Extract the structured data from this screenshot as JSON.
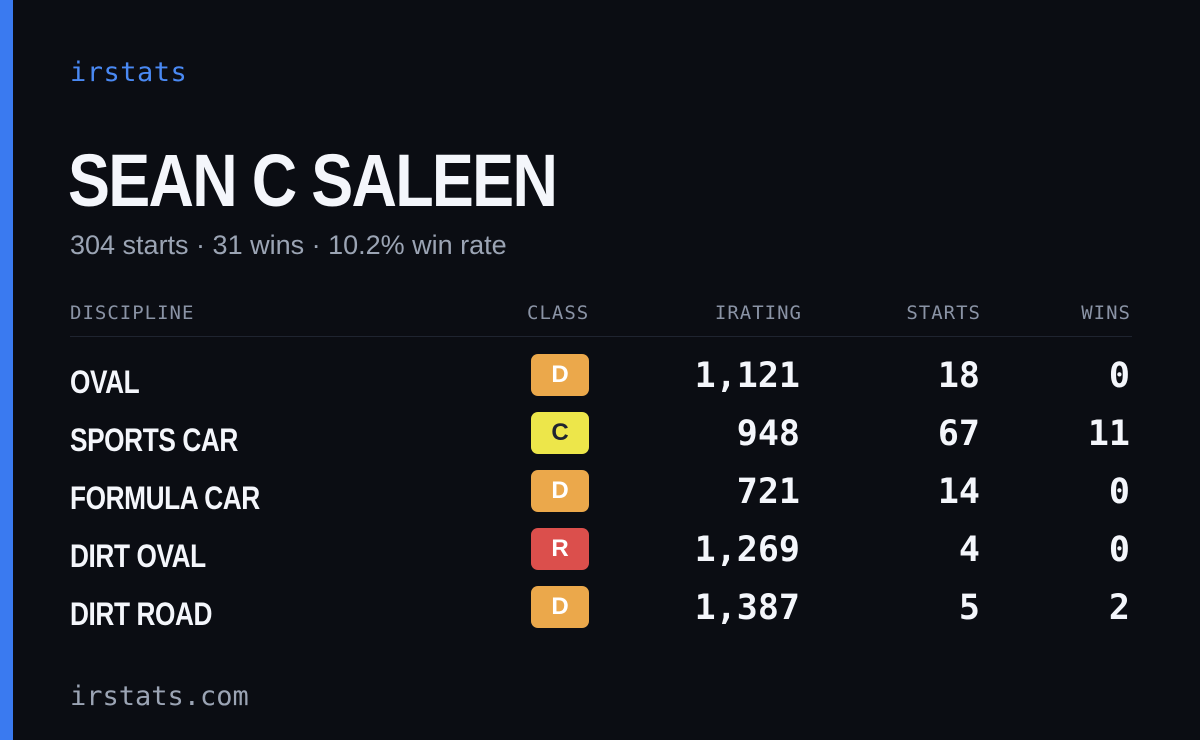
{
  "brand": "irstats",
  "player": {
    "name": "SEAN C SALEEN",
    "summary": "304 starts · 31 wins · 10.2% win rate"
  },
  "table": {
    "headers": {
      "discipline": "DISCIPLINE",
      "class": "CLASS",
      "irating": "IRATING",
      "starts": "STARTS",
      "wins": "WINS"
    },
    "rows": [
      {
        "discipline": "OVAL",
        "class": "D",
        "class_color": "#eba84b",
        "class_text_color": "#ffffff",
        "irating": "1,121",
        "starts": "18",
        "wins": "0"
      },
      {
        "discipline": "SPORTS CAR",
        "class": "C",
        "class_color": "#ede64a",
        "class_text_color": "#1f2430",
        "irating": "948",
        "starts": "67",
        "wins": "11"
      },
      {
        "discipline": "FORMULA CAR",
        "class": "D",
        "class_color": "#eba84b",
        "class_text_color": "#ffffff",
        "irating": "721",
        "starts": "14",
        "wins": "0"
      },
      {
        "discipline": "DIRT OVAL",
        "class": "R",
        "class_color": "#db4f4c",
        "class_text_color": "#ffffff",
        "irating": "1,269",
        "starts": "4",
        "wins": "0"
      },
      {
        "discipline": "DIRT ROAD",
        "class": "D",
        "class_color": "#eba84b",
        "class_text_color": "#ffffff",
        "irating": "1,387",
        "starts": "5",
        "wins": "2"
      }
    ]
  },
  "footer": "irstats.com",
  "colors": {
    "background": "#0b0d13",
    "accent": "#3a7af0",
    "brand_text": "#4a89f3"
  }
}
